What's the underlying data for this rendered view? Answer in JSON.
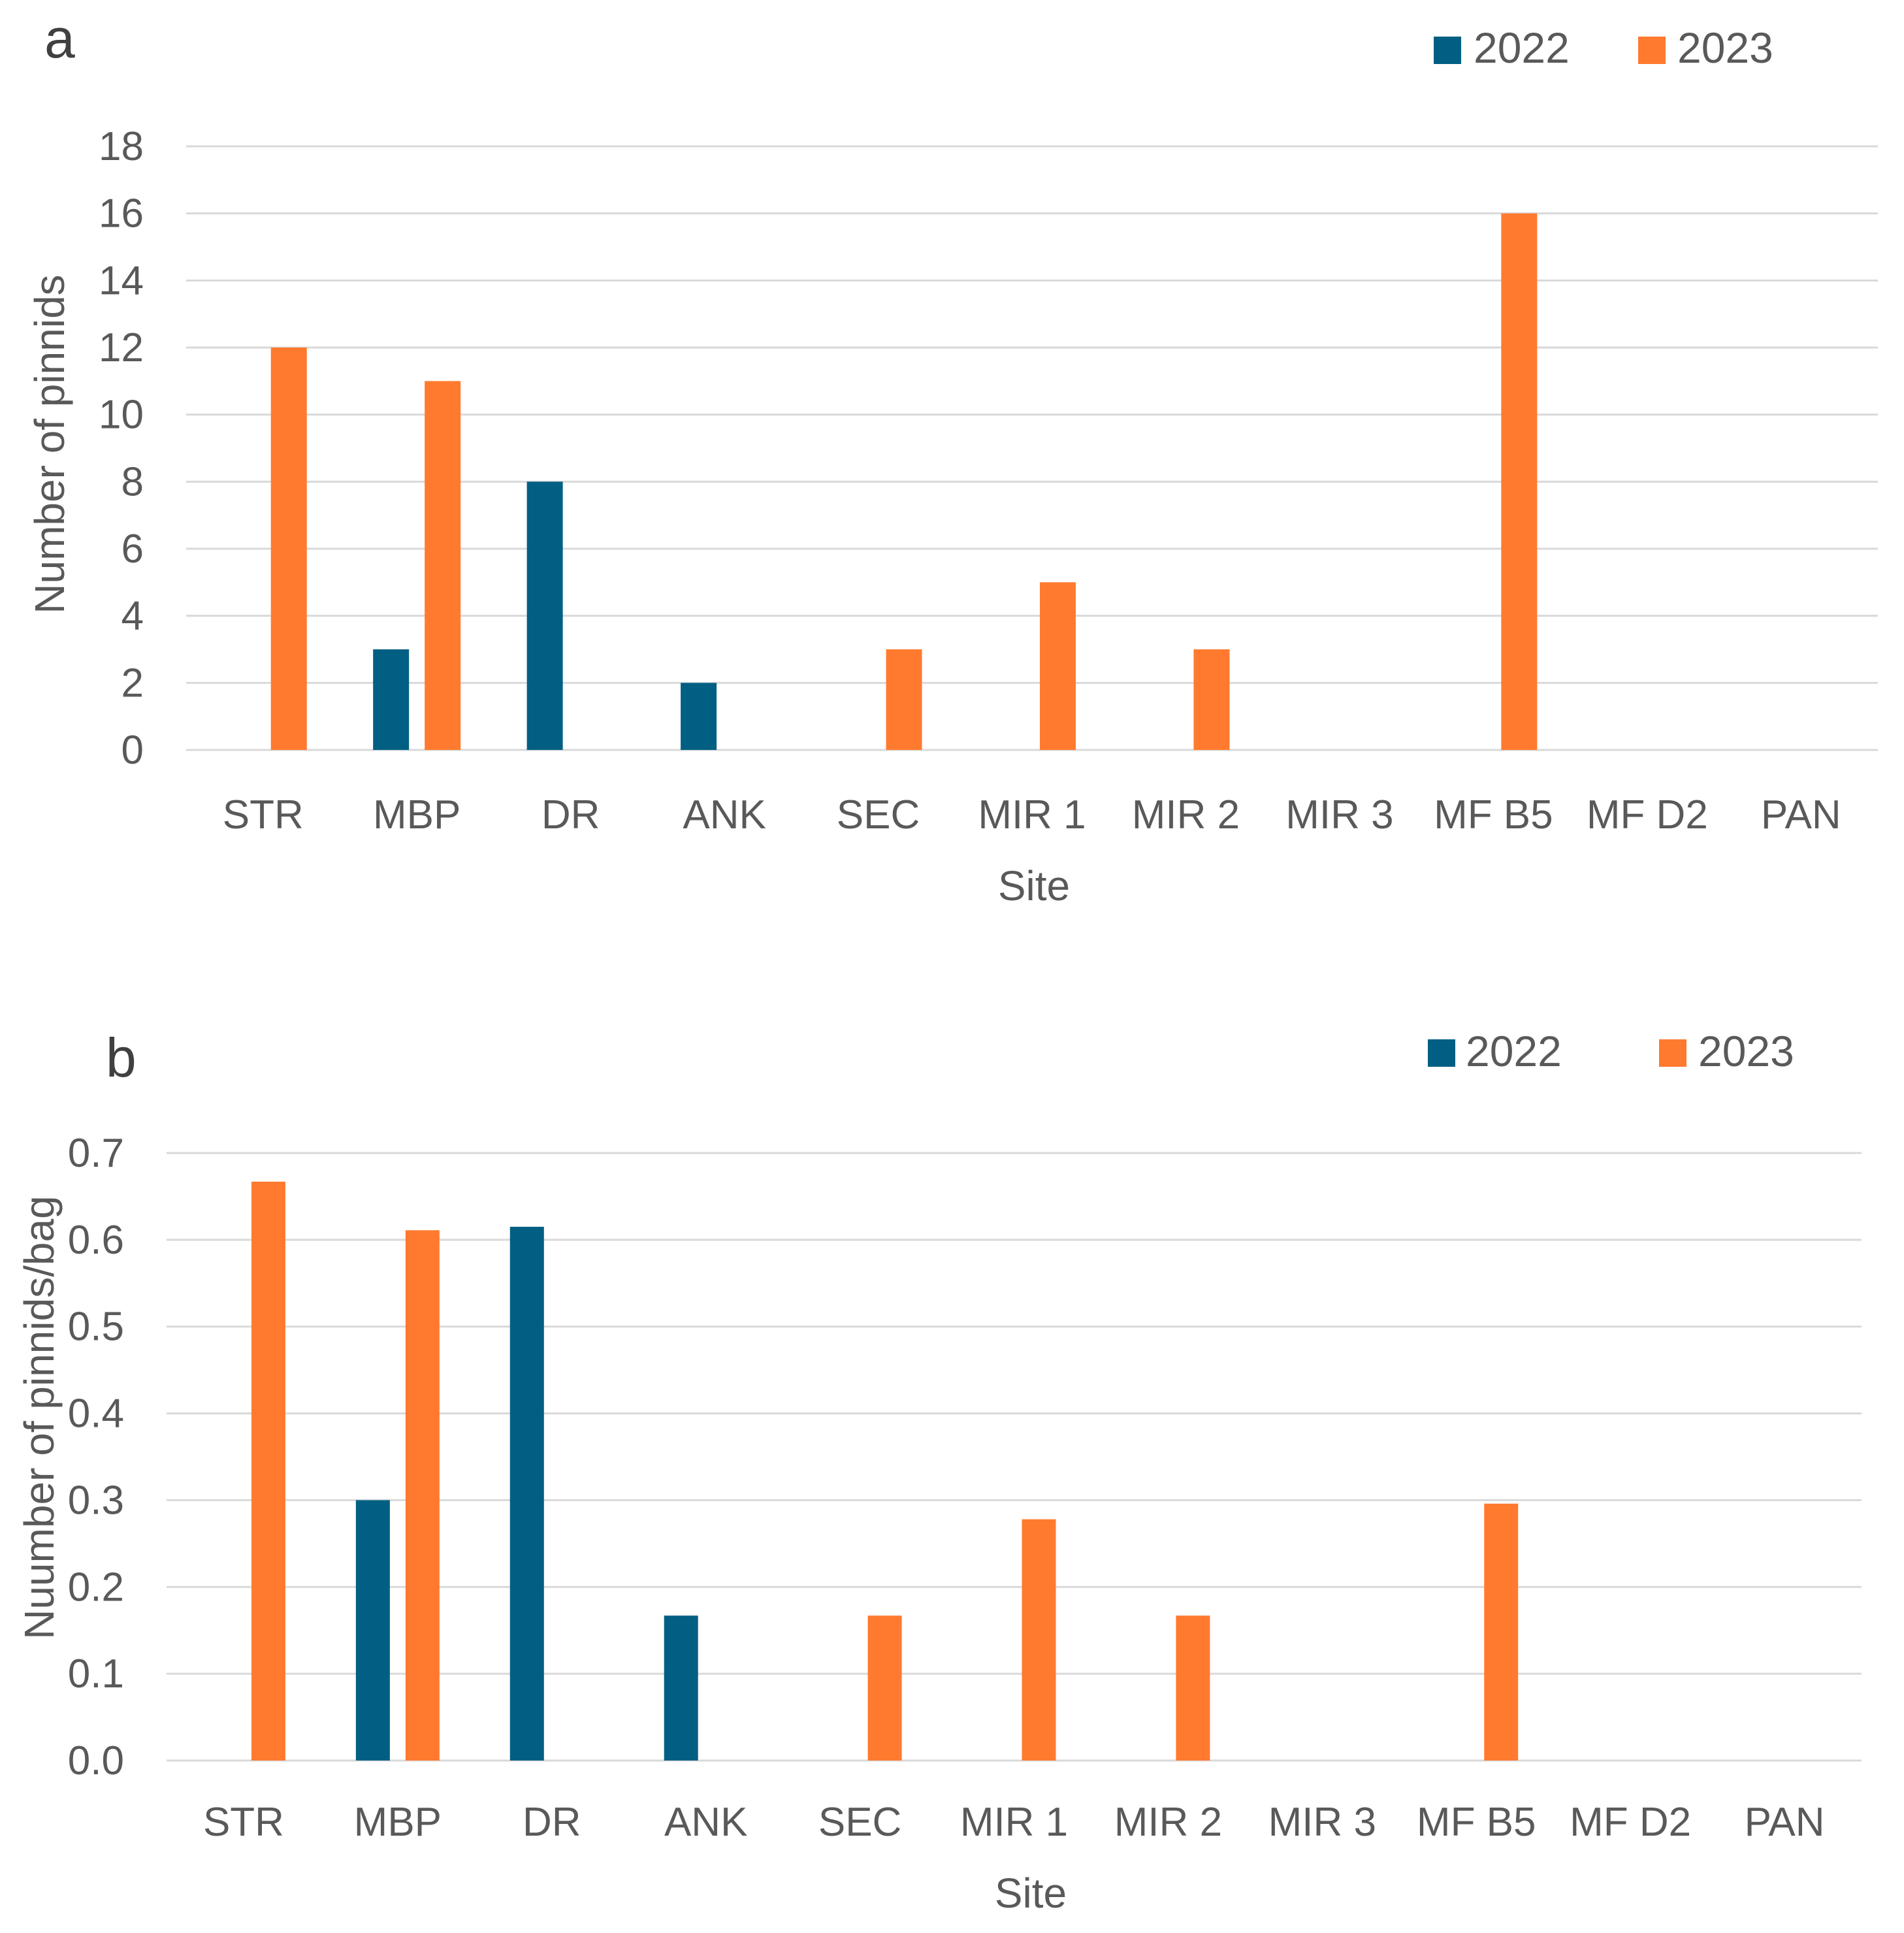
{
  "colors": {
    "2022": "#005f83",
    "2023": "#ff7a2f"
  },
  "chart_data": [
    {
      "panel": "a",
      "type": "bar",
      "title": "",
      "xlabel": "Site",
      "ylabel": "Number of pinnids",
      "ylim": [
        0,
        18
      ],
      "yticks": [
        "0",
        "2",
        "4",
        "6",
        "8",
        "10",
        "12",
        "14",
        "16",
        "18"
      ],
      "categories": [
        "STR",
        "MBP",
        "DR",
        "ANK",
        "SEC",
        "MIR 1",
        "MIR 2",
        "MIR 3",
        "MF B5",
        "MF D2",
        "PAN"
      ],
      "legend": [
        "2022",
        "2023"
      ],
      "series": [
        {
          "name": "2022",
          "values": [
            0,
            3,
            8,
            2,
            0,
            0,
            0,
            0,
            0,
            0,
            0
          ]
        },
        {
          "name": "2023",
          "values": [
            12,
            11,
            0,
            0,
            3,
            5,
            3,
            0,
            16,
            0,
            0
          ]
        }
      ]
    },
    {
      "panel": "b",
      "type": "bar",
      "title": "",
      "xlabel": "Site",
      "ylabel": "Nuumber of pinnids/bag",
      "ylim": [
        0,
        0.7
      ],
      "yticks": [
        "0.0",
        "0.1",
        "0.2",
        "0.3",
        "0.4",
        "0.5",
        "0.6",
        "0.7"
      ],
      "categories": [
        "STR",
        "MBP",
        "DR",
        "ANK",
        "SEC",
        "MIR 1",
        "MIR 2",
        "MIR 3",
        "MF B5",
        "MF D2",
        "PAN"
      ],
      "legend": [
        "2022",
        "2023"
      ],
      "series": [
        {
          "name": "2022",
          "values": [
            0,
            0.3,
            0.615,
            0.167,
            0,
            0,
            0,
            0,
            0,
            0,
            0
          ]
        },
        {
          "name": "2023",
          "values": [
            0.667,
            0.611,
            0,
            0,
            0.167,
            0.278,
            0.167,
            0,
            0.296,
            0,
            0
          ]
        }
      ]
    }
  ]
}
